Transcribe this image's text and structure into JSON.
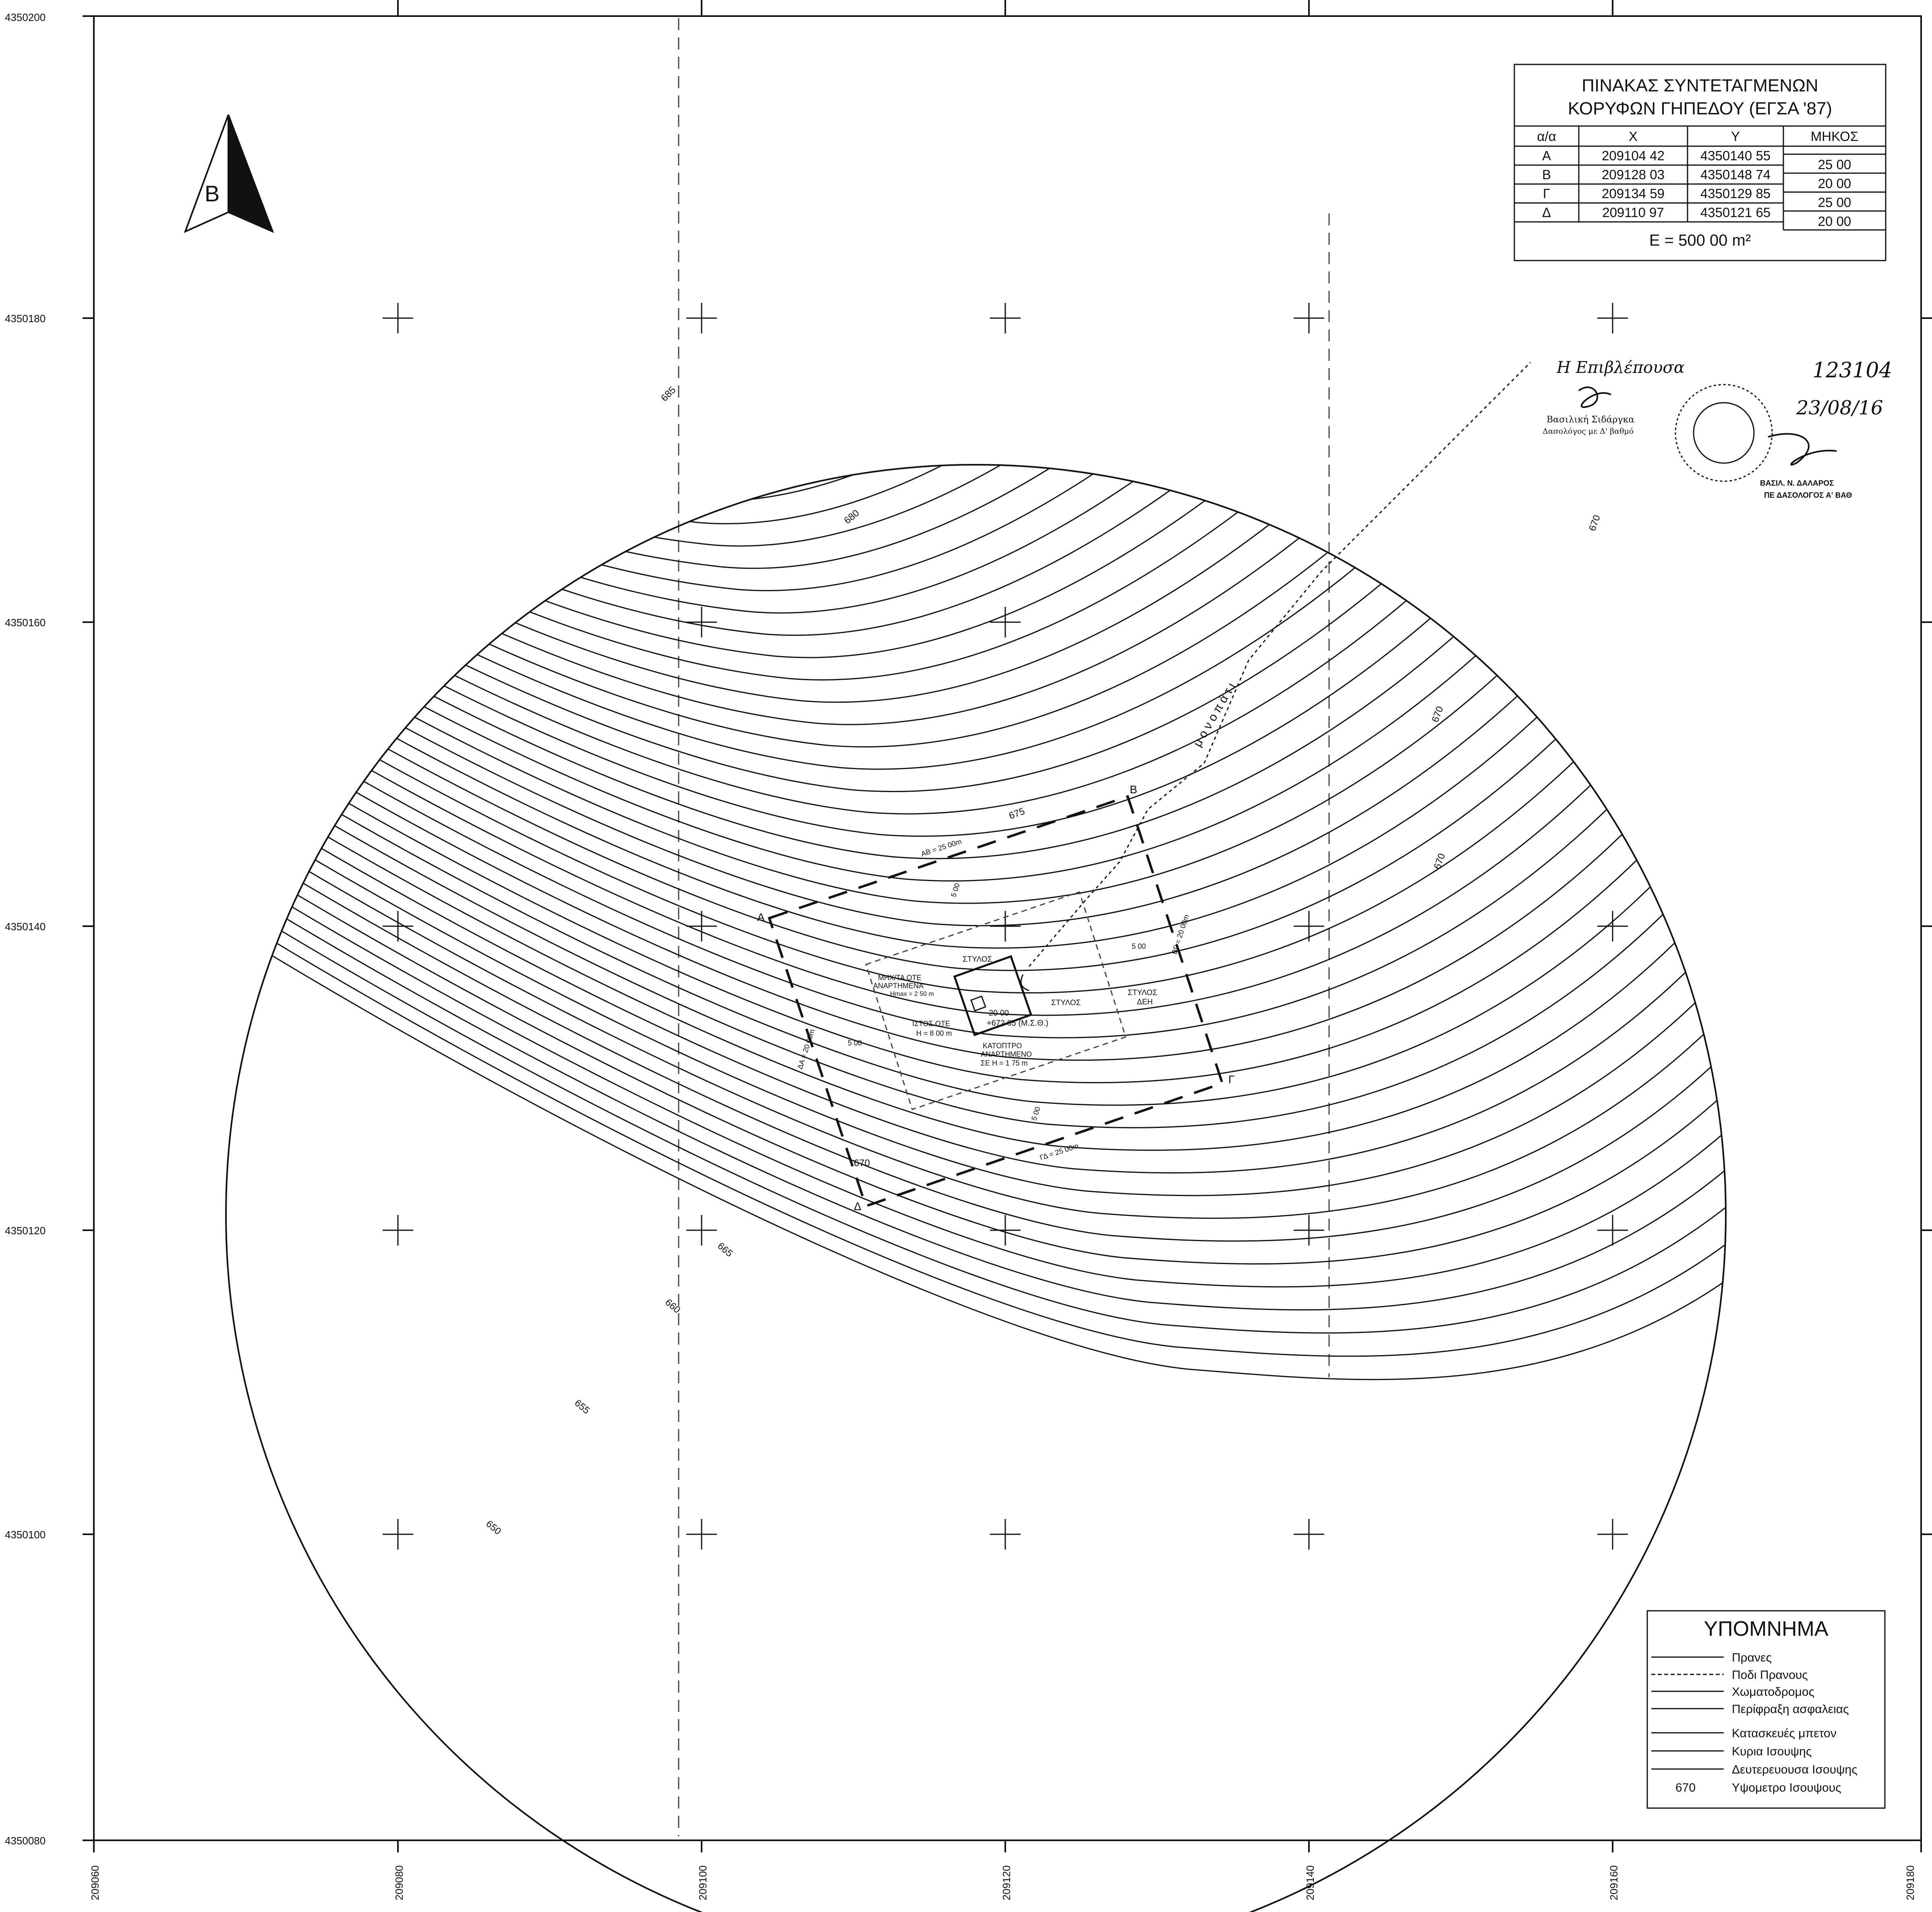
{
  "axes": {
    "y_labels": [
      "4350200",
      "4350180",
      "4350160",
      "4350140",
      "4350120",
      "4350100",
      "4350080"
    ],
    "x_labels": [
      "209060",
      "209080",
      "209100",
      "209120",
      "209140",
      "209160",
      "209180"
    ]
  },
  "north_arrow": {
    "letter": "B"
  },
  "coord_table": {
    "title1": "ΠΙΝΑΚΑΣ ΣΥΝΤΕΤΑΓΜΕΝΩΝ",
    "title2": "ΚΟΡΥΦΩΝ ΓΗΠΕΔΟΥ (ΕΓΣΑ '87)",
    "headers": [
      "α/α",
      "X",
      "Y",
      "ΜΗΚΟΣ"
    ],
    "rows": [
      [
        "Α",
        "209104 42",
        "4350140 55"
      ],
      [
        "Β",
        "209128 03",
        "4350148 74"
      ],
      [
        "Γ",
        "209134 59",
        "4350129 85"
      ],
      [
        "Δ",
        "209110 97",
        "4350121 65"
      ]
    ],
    "lengths": [
      "25 00",
      "20 00",
      "25 00",
      "20 00"
    ],
    "area": "Ε = 500 00 m²"
  },
  "contour_labels": [
    "685",
    "680",
    "675",
    "670",
    "670",
    "670",
    "670",
    "665",
    "660",
    "655",
    "650"
  ],
  "site": {
    "corner_a": "Α",
    "corner_b": "Β",
    "corner_g": "Γ",
    "corner_d": "Δ",
    "ab": "ΑΒ = 25 00m",
    "bg": "ΒΓ = 20 00m",
    "gd": "ΓΔ = 25 00m",
    "da": "ΔΑ = 20 00m",
    "offset": "5 00",
    "stylos": "ΣΤΥΛΟΣ",
    "stylos_deh1": "ΣΤΥΛΟΣ",
    "stylos_deh2": "ΔΕΗ",
    "mhx1": "ΜΗΧ/ΤΑ ΟΤΕ",
    "mhx2": "ΑΝΑΡΤΗΜΕΝΑ",
    "mhx3": "Hmax = 2 50 m",
    "istos1": "ΙΣΤΟΣ ΟΤΕ",
    "istos2": "Η = 8 00 m",
    "katop1": "ΚΑΤΟΠΤΡΟ",
    "katop2": "ΑΝΑΡΤΗΜΕΝΟ",
    "katop3": "ΣΕ Η = 1 75 m",
    "size": "20 00",
    "elev": "+672 85 (Μ.Σ.Θ.)",
    "path": "μονοπάτι"
  },
  "signature": {
    "handwritten": "Η Επιβλέπουσα",
    "stamp_name": "Βασιλική Σιδάργκα",
    "stamp_title": "Δασολόγος με Δ' βαθμό",
    "number": "123104",
    "date": "23/08/16",
    "name2": "ΒΑΣΙΛ. Ν. ΔΑΛΑΡΟΣ",
    "title2": "ΠΕ ΔΑΣΟΛΟΓΟΣ Α' ΒΑΘ"
  },
  "legend": {
    "title": "ΥΠΟΜΝΗΜΑ",
    "items": [
      "Πρανες",
      "Ποδι Πρανους",
      "Χωματοδρομος",
      "Περίφραξη ασφαλειας",
      "Κατασκευές μπετον",
      "Κυρια Ισουψης",
      "Δευτερευουσα Ισουψης",
      "Υψομετρο Ισουψους"
    ],
    "sample": "670"
  }
}
